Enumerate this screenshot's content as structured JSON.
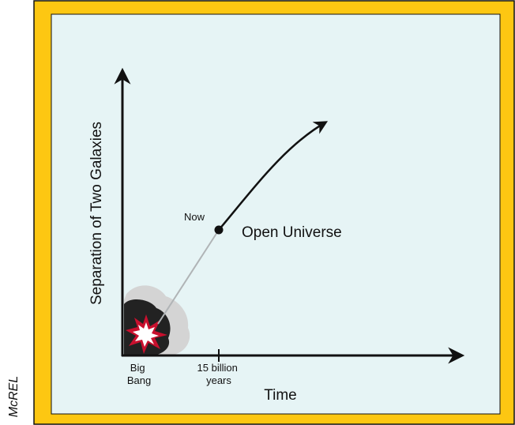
{
  "credit": "McREL",
  "axes": {
    "y_label": "Separation of Two Galaxies",
    "x_label": "Time"
  },
  "x_ticks": [
    {
      "lines": [
        "Big",
        "Bang"
      ]
    },
    {
      "lines": [
        "15 billion",
        "years"
      ]
    }
  ],
  "point": {
    "label": "Now"
  },
  "curve": {
    "label": "Open Universe"
  }
}
